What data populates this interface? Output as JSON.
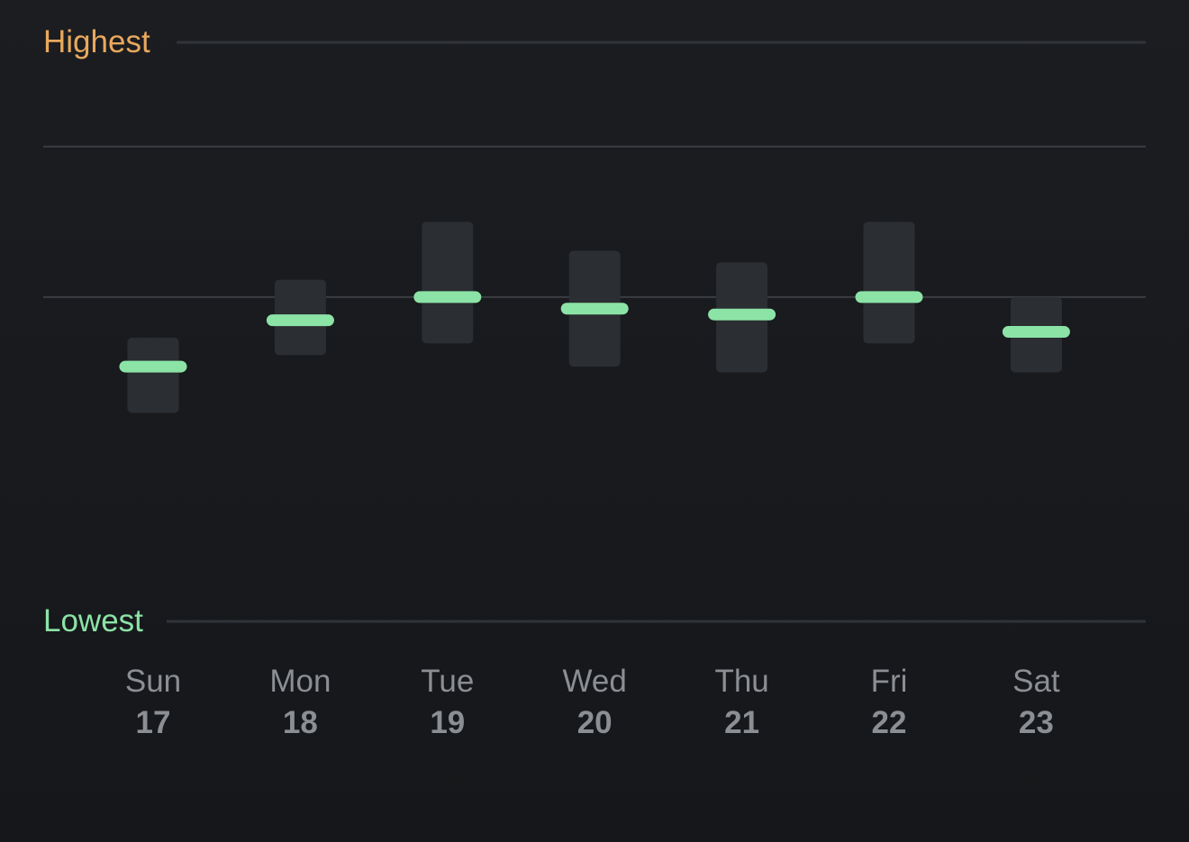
{
  "legend": {
    "highest_label": "Highest",
    "lowest_label": "Lowest",
    "highest_color": "#e9a85c",
    "lowest_color": "#8ce3a6"
  },
  "colors": {
    "background": "#17191c",
    "range_bar": "#2b2e32",
    "marker": "#8ce3a6",
    "gridline": "#303338",
    "axis_text": "#8b8e93"
  },
  "chart_data": {
    "type": "bar",
    "categories": [
      "Sun 17",
      "Mon 18",
      "Tue 19",
      "Wed 20",
      "Thu 21",
      "Fri 22",
      "Sat 23"
    ],
    "days": [
      {
        "day": "Sun",
        "date": "17",
        "low": 0.36,
        "high": 0.49,
        "value": 0.44
      },
      {
        "day": "Mon",
        "date": "18",
        "low": 0.46,
        "high": 0.59,
        "value": 0.52
      },
      {
        "day": "Tue",
        "date": "19",
        "low": 0.48,
        "high": 0.69,
        "value": 0.56
      },
      {
        "day": "Wed",
        "date": "20",
        "low": 0.44,
        "high": 0.64,
        "value": 0.54
      },
      {
        "day": "Thu",
        "date": "21",
        "low": 0.43,
        "high": 0.62,
        "value": 0.53
      },
      {
        "day": "Fri",
        "date": "22",
        "low": 0.48,
        "high": 0.69,
        "value": 0.56
      },
      {
        "day": "Sat",
        "date": "23",
        "low": 0.43,
        "high": 0.56,
        "value": 0.5
      }
    ],
    "ylim": [
      0,
      1
    ],
    "reference_lines": [
      0.56,
      0.82
    ],
    "grid": true,
    "legend_position": "inline-left"
  }
}
